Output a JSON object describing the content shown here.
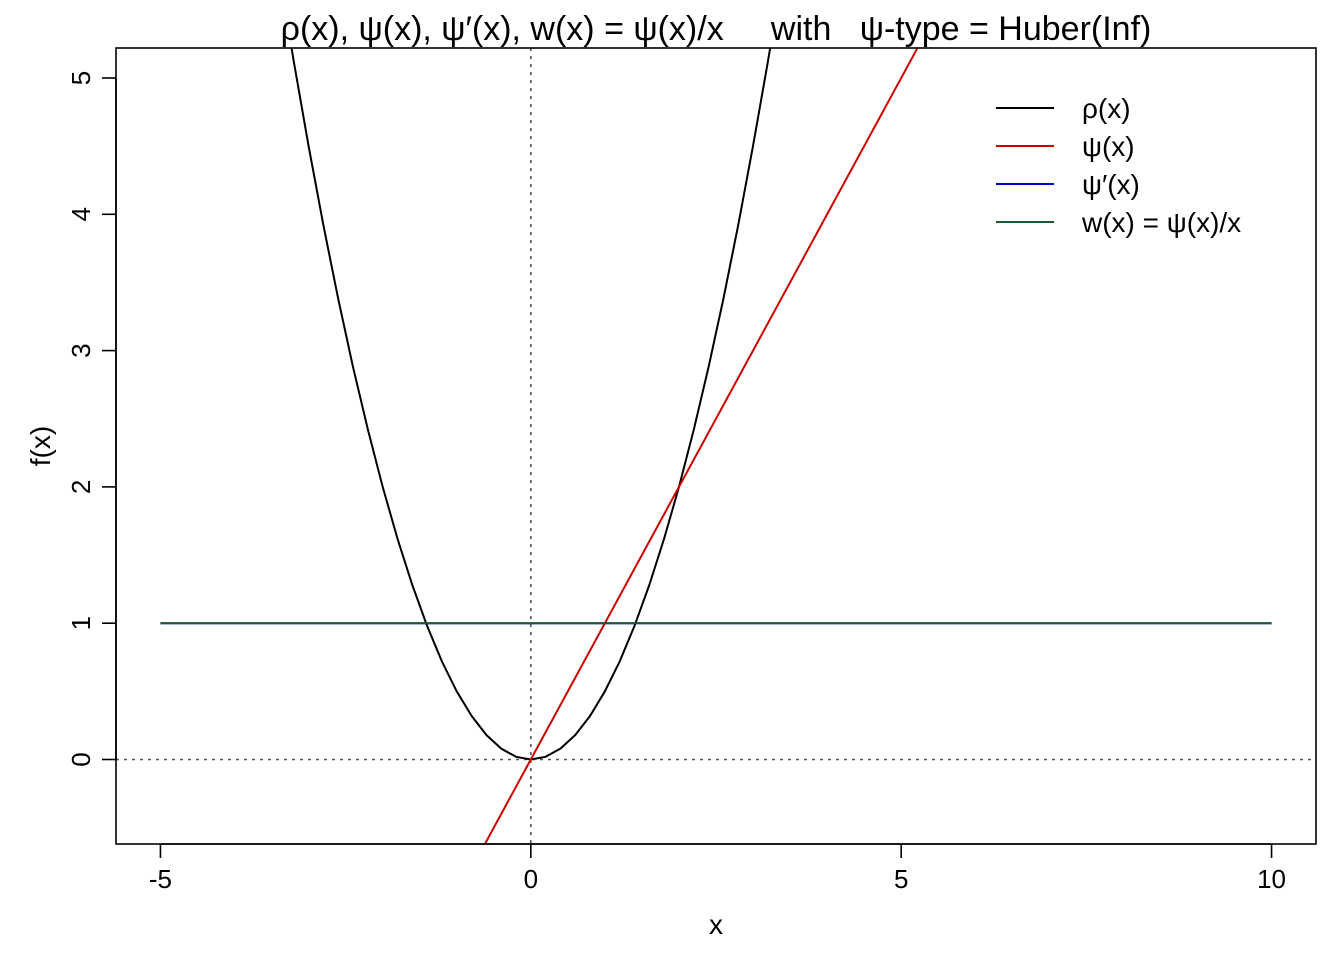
{
  "chart_data": {
    "type": "line",
    "title": "ρ(x), ψ(x), ψ′(x), w(x) = ψ(x)/x     with   ψ-type = Huber(Inf)",
    "xlabel": "x",
    "ylabel": "f(x)",
    "xlim": [
      -5.6,
      10.6
    ],
    "ylim": [
      -0.62,
      5.22
    ],
    "xticks": [
      -5,
      0,
      5,
      10
    ],
    "xtick_labels": [
      "-5",
      "0",
      "5",
      "10"
    ],
    "yticks": [
      0,
      1,
      2,
      3,
      4,
      5
    ],
    "ytick_labels": [
      "0",
      "1",
      "2",
      "3",
      "4",
      "5"
    ],
    "grid": false,
    "legend_position": "top-right",
    "reference_lines": {
      "vertical_x": 0,
      "horizontal_y": 0,
      "style": "dotted"
    },
    "series": [
      {
        "name": "ρ(x)",
        "color": "#000000",
        "x": [
          -3.4,
          -3.2,
          -3.0,
          -2.8,
          -2.6,
          -2.4,
          -2.2,
          -2.0,
          -1.8,
          -1.6,
          -1.4,
          -1.2,
          -1.0,
          -0.8,
          -0.6,
          -0.4,
          -0.2,
          0.0,
          0.2,
          0.4,
          0.6,
          0.8,
          1.0,
          1.2,
          1.4,
          1.6,
          1.8,
          2.0,
          2.2,
          2.4,
          2.6,
          2.8,
          3.0,
          3.2,
          3.4
        ],
        "values": [
          5.78,
          5.12,
          4.5,
          3.92,
          3.38,
          2.88,
          2.42,
          2.0,
          1.62,
          1.28,
          0.98,
          0.72,
          0.5,
          0.32,
          0.18,
          0.08,
          0.02,
          0.0,
          0.02,
          0.08,
          0.18,
          0.32,
          0.5,
          0.72,
          0.98,
          1.28,
          1.62,
          2.0,
          2.42,
          2.88,
          3.38,
          3.92,
          4.5,
          5.12,
          5.78
        ]
      },
      {
        "name": "ψ(x)",
        "color": "#cc0000",
        "x": [
          -0.8,
          0.0,
          5.4
        ],
        "values": [
          -0.8,
          0.0,
          5.4
        ]
      },
      {
        "name": "ψ′(x)",
        "color": "#0000cc",
        "x": [
          -5,
          10
        ],
        "values": [
          1,
          1
        ]
      },
      {
        "name": "w(x) = ψ(x)/x",
        "color": "#1f5a2e",
        "x": [
          -5,
          10
        ],
        "values": [
          1,
          1
        ]
      }
    ]
  }
}
